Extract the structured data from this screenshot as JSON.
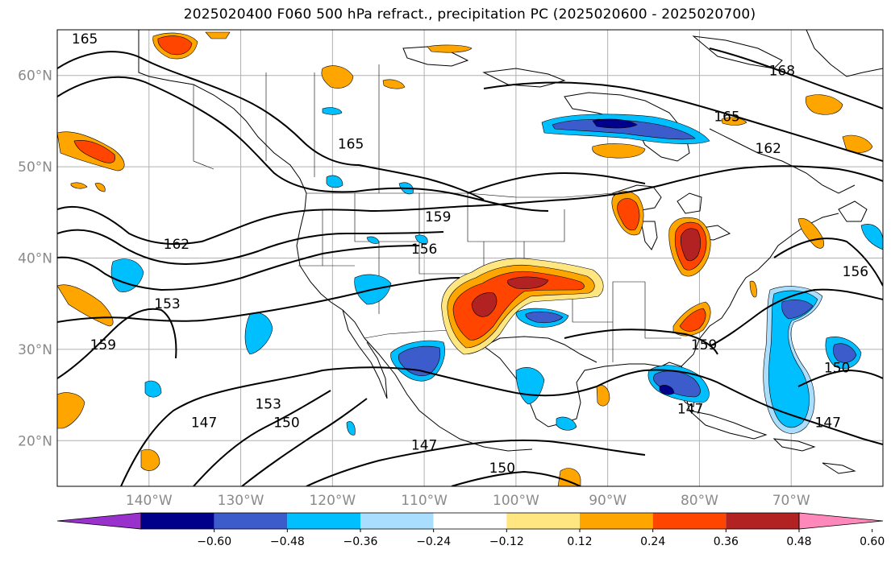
{
  "title": "2025020400 F060 500 hPa refract., precipitation PC (2025020600 - 2025020700)",
  "map": {
    "lon_range": [
      -150,
      -60
    ],
    "lat_range": [
      15,
      65
    ],
    "lat_labels": [
      "60°N",
      "50°N",
      "40°N",
      "30°N",
      "20°N"
    ],
    "lon_labels": [
      "140°W",
      "130°W",
      "120°W",
      "110°W",
      "100°W",
      "90°W",
      "80°W",
      "70°W"
    ],
    "contour_labels": [
      {
        "text": "165",
        "lon": -147,
        "lat": 63.5
      },
      {
        "text": "168",
        "lon": -71,
        "lat": 60
      },
      {
        "text": "165",
        "lon": -77,
        "lat": 55
      },
      {
        "text": "165",
        "lon": -118,
        "lat": 52
      },
      {
        "text": "162",
        "lon": -72.5,
        "lat": 51.5
      },
      {
        "text": "159",
        "lon": -108.5,
        "lat": 44
      },
      {
        "text": "162",
        "lon": -137,
        "lat": 41
      },
      {
        "text": "156",
        "lon": -110,
        "lat": 40.5
      },
      {
        "text": "156",
        "lon": -63,
        "lat": 38
      },
      {
        "text": "153",
        "lon": -138,
        "lat": 34.5
      },
      {
        "text": "159",
        "lon": -145,
        "lat": 30
      },
      {
        "text": "159",
        "lon": -79.5,
        "lat": 30
      },
      {
        "text": "150",
        "lon": -65,
        "lat": 27.5
      },
      {
        "text": "153",
        "lon": -127,
        "lat": 23.5
      },
      {
        "text": "147",
        "lon": -81,
        "lat": 23
      },
      {
        "text": "150",
        "lon": -125,
        "lat": 21.5
      },
      {
        "text": "147",
        "lon": -66,
        "lat": 21.5
      },
      {
        "text": "147",
        "lon": -134,
        "lat": 21.5
      },
      {
        "text": "147",
        "lon": -110,
        "lat": 19
      },
      {
        "text": "150",
        "lon": -101.5,
        "lat": 16.5
      }
    ]
  },
  "colorbar": {
    "colors": [
      "#9932cc",
      "#00008b",
      "#3d5ccc",
      "#00bfff",
      "#aadeff",
      "#ffffff",
      "#ffe680",
      "#ffa500",
      "#ff4500",
      "#b22222",
      "#ff88bb"
    ],
    "labels": [
      "−0.60",
      "−0.48",
      "−0.36",
      "−0.24",
      "−0.12",
      "0.12",
      "0.24",
      "0.36",
      "0.48",
      "0.60"
    ]
  }
}
